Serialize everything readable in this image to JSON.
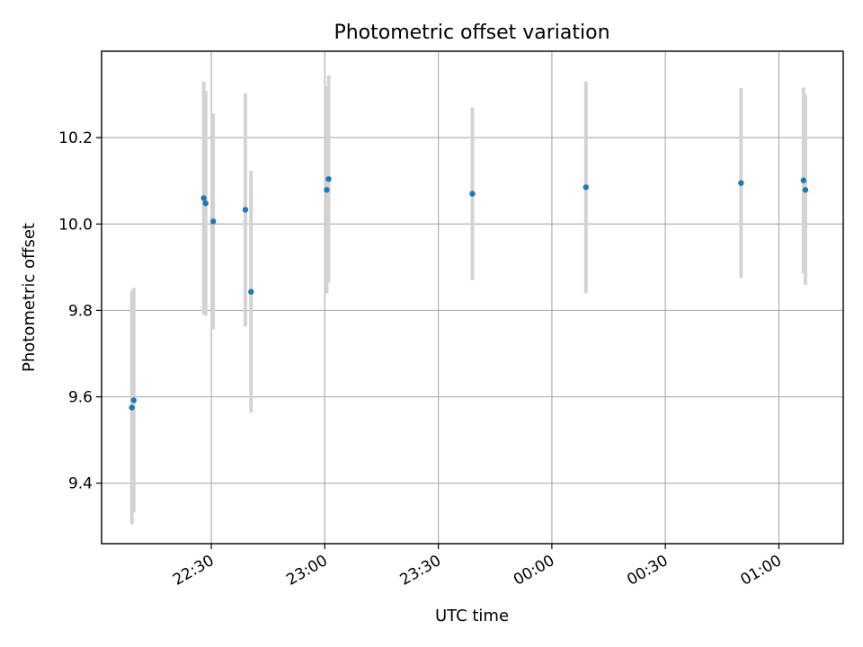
{
  "chart_data": {
    "type": "scatter",
    "title": "Photometric offset variation",
    "xlabel": "UTC time",
    "ylabel": "Photometric offset",
    "x_axis_type": "time",
    "x_start": "22:01",
    "x_end": "01:17",
    "ylim": [
      9.26,
      10.4
    ],
    "xticks": [
      "22:30",
      "23:00",
      "23:30",
      "00:00",
      "00:30",
      "01:00"
    ],
    "yticks": [
      9.4,
      9.6,
      9.8,
      10.0,
      10.2
    ],
    "grid": true,
    "legend": "none",
    "colors": {
      "points": "#1f77b4",
      "errorbars": "#d3d3d3"
    },
    "points": [
      {
        "x": "22:09",
        "y": 9.575,
        "yerr": 0.27
      },
      {
        "x": "22:09:30",
        "y": 9.592,
        "yerr": 0.26
      },
      {
        "x": "22:28",
        "y": 10.06,
        "yerr": 0.27
      },
      {
        "x": "22:28:30",
        "y": 10.048,
        "yerr": 0.26
      },
      {
        "x": "22:30:30",
        "y": 10.006,
        "yerr": 0.25
      },
      {
        "x": "22:39",
        "y": 10.033,
        "yerr": 0.27
      },
      {
        "x": "22:40:30",
        "y": 9.843,
        "yerr": 0.28
      },
      {
        "x": "23:00:30",
        "y": 10.079,
        "yerr": 0.24
      },
      {
        "x": "23:01",
        "y": 10.104,
        "yerr": 0.24
      },
      {
        "x": "23:39",
        "y": 10.07,
        "yerr": 0.2
      },
      {
        "x": "00:09",
        "y": 10.085,
        "yerr": 0.245
      },
      {
        "x": "00:50",
        "y": 10.095,
        "yerr": 0.22
      },
      {
        "x": "01:06:30",
        "y": 10.101,
        "yerr": 0.215
      },
      {
        "x": "01:07",
        "y": 10.079,
        "yerr": 0.22
      }
    ]
  }
}
